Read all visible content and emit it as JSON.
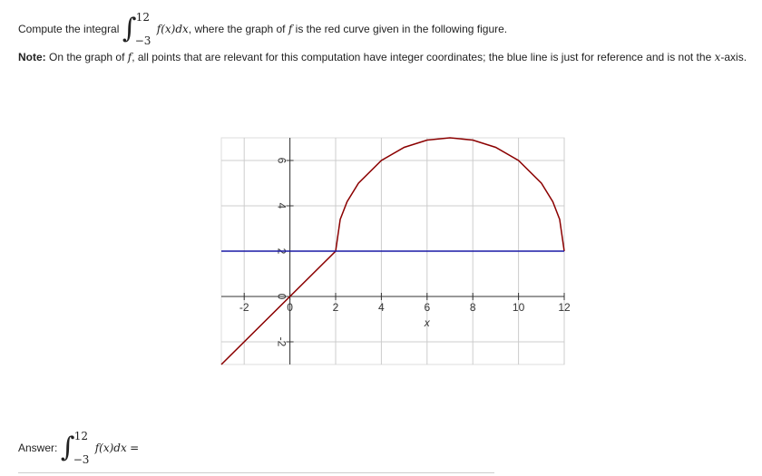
{
  "question": {
    "prefix": "Compute the integral",
    "integral_sign": "∫",
    "upper": "12",
    "lower": "−3",
    "integrand": "f(x)dx",
    "middle": ", where the graph of",
    "f": "f",
    "suffix": "is the red curve given in the following figure."
  },
  "note": {
    "label": "Note:",
    "text1": "On the graph of",
    "f": "f",
    "text2": ", all points that are relevant for this computation have integer coordinates; the blue line is just for reference and is not the",
    "x": "x",
    "text3": "-axis."
  },
  "chart_data": {
    "type": "line",
    "xlabel": "x",
    "xlim": [
      -3,
      12
    ],
    "ylim": [
      -3,
      7
    ],
    "xticks": [
      -2,
      0,
      2,
      4,
      6,
      8,
      10,
      12
    ],
    "yticks": [
      -2,
      0,
      2,
      4,
      6
    ],
    "grid": true,
    "series": [
      {
        "color": "#8b0000",
        "x": [
          -3,
          2,
          2.2,
          2.5,
          3,
          4,
          5,
          6,
          7,
          8,
          9,
          10,
          11,
          11.5,
          11.8,
          12
        ],
        "values": [
          -3,
          2,
          3.4,
          4.18,
          5,
          6,
          6.58,
          6.9,
          7,
          6.9,
          6.58,
          6,
          5,
          4.18,
          3.4,
          2
        ]
      },
      {
        "color": "#1a1aa6",
        "x": [
          -3,
          12
        ],
        "values": [
          2,
          2
        ]
      }
    ]
  },
  "answer": {
    "label": "Answer:",
    "integral_sign": "∫",
    "upper": "12",
    "lower": "−3",
    "integrand": "f(x)dx",
    "equals": "="
  }
}
